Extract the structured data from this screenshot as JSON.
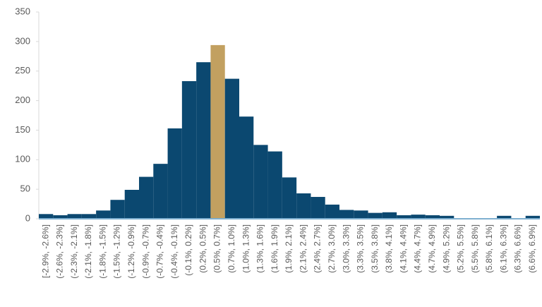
{
  "chart_data": {
    "type": "bar",
    "categories": [
      "[-2.9%, -2.6%]",
      "(-2.6%, -2.3%]",
      "(-2.3%, -2.1%]",
      "(-2.1%, -1.8%]",
      "(-1.8%, -1.5%]",
      "(-1.5%, -1.2%]",
      "(-1.2%, -0.9%]",
      "(-0.9%, -0.7%]",
      "(-0.7%, -0.4%]",
      "(-0.4%, -0.1%]",
      "(-0.1%, 0.2%]",
      "(0.2%, 0.5%]",
      "(0.5%, 0.7%]",
      "(0.7%, 1.0%]",
      "(1.0%, 1.3%]",
      "(1.3%, 1.6%]",
      "(1.6%, 1.9%]",
      "(1.9%, 2.1%]",
      "(2.1%, 2.4%]",
      "(2.4%, 2.7%]",
      "(2.7%, 3.0%]",
      "(3.0%, 3.3%]",
      "(3.3%, 3.5%]",
      "(3.5%, 3.8%]",
      "(3.8%, 4.1%]",
      "(4.1%, 4.4%]",
      "(4.4%, 4.7%]",
      "(4.7%, 4.9%]",
      "(4.9%, 5.2%]",
      "(5.2%, 5.5%]",
      "(5.5%, 5.8%]",
      "(5.8%, 6.1%]",
      "(6.1%, 6.3%]",
      "(6.3%, 6.6%]",
      "(6.6%, 6.9%]"
    ],
    "values": [
      8,
      6,
      8,
      8,
      14,
      32,
      49,
      71,
      93,
      153,
      233,
      265,
      294,
      237,
      173,
      125,
      114,
      70,
      43,
      37,
      24,
      15,
      14,
      10,
      11,
      6,
      7,
      6,
      5,
      0,
      0,
      0,
      5,
      0,
      5
    ],
    "colors": [
      "#0b4870",
      "#0b4870",
      "#0b4870",
      "#0b4870",
      "#0b4870",
      "#0b4870",
      "#0b4870",
      "#0b4870",
      "#0b4870",
      "#0b4870",
      "#0b4870",
      "#0b4870",
      "#c2a060",
      "#0b4870",
      "#0b4870",
      "#0b4870",
      "#0b4870",
      "#0b4870",
      "#0b4870",
      "#0b4870",
      "#0b4870",
      "#0b4870",
      "#0b4870",
      "#0b4870",
      "#0b4870",
      "#0b4870",
      "#0b4870",
      "#0b4870",
      "#0b4870",
      "#0b4870",
      "#0b4870",
      "#0b4870",
      "#0b4870",
      "#0b4870",
      "#0b4870"
    ],
    "ylim": [
      0,
      350
    ],
    "yticks": [
      0,
      50,
      100,
      150,
      200,
      250,
      300,
      350
    ],
    "grid": false
  }
}
